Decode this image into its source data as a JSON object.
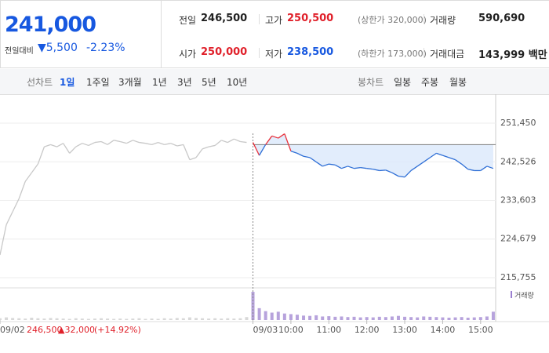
{
  "header": {
    "price": "241,000",
    "change_label": "전일대비",
    "change": "▼5,500",
    "rate": "-2.23%",
    "rows": [
      [
        {
          "label": "전일",
          "value": "246,500"
        },
        {
          "label": "고가",
          "value": "250,500",
          "note": "(상한가 320,000)"
        },
        {
          "label": "거래량",
          "value": "590,690"
        }
      ],
      [
        {
          "label": "시가",
          "value": "250,000"
        },
        {
          "label": "저가",
          "value": "238,500",
          "note": "(하한가 173,000)"
        },
        {
          "label": "거래대금",
          "value": "143,999 백만"
        }
      ]
    ]
  },
  "tabs": {
    "line_label": "선차트",
    "line_tabs": [
      "1일",
      "1주일",
      "3개월",
      "1년",
      "3년",
      "5년",
      "10년"
    ],
    "candle_label": "봉차트",
    "candle_tabs": [
      "일봉",
      "주봉",
      "월봉"
    ]
  },
  "chart_data": {
    "type": "line",
    "x": [
      0,
      1,
      2,
      3,
      4,
      5,
      6,
      7,
      8,
      9,
      10,
      11,
      12,
      13,
      14,
      15,
      16,
      17,
      18,
      19,
      20,
      21,
      22,
      23,
      24,
      25,
      26,
      27,
      28,
      29,
      30,
      31,
      32,
      33,
      34,
      35,
      36,
      37,
      38,
      39,
      40,
      41,
      42,
      43,
      44,
      45,
      46,
      47,
      48,
      49,
      50,
      51,
      52,
      53,
      54,
      55,
      56,
      57,
      58,
      59,
      60,
      61,
      62,
      63,
      64,
      65,
      66,
      67,
      68,
      69,
      70,
      71,
      72,
      73,
      74,
      75,
      76,
      77,
      78
    ],
    "series": [
      {
        "name": "09/02",
        "color": "#c8c8c8",
        "values": [
          221000,
          228000,
          231000,
          234000,
          238000,
          240000,
          242000,
          246000,
          246500,
          246000,
          246800,
          244500,
          246000,
          246800,
          246300,
          247000,
          247200,
          246500,
          247500,
          247200,
          246800,
          247500,
          247000,
          246800,
          246500,
          247000,
          246500,
          246800,
          246200,
          246500,
          243000,
          243500,
          245500,
          246000,
          246300,
          247500,
          247000,
          247800,
          247200,
          247000,
          null,
          null,
          null,
          null,
          null,
          null,
          null,
          null,
          null,
          null,
          null,
          null,
          null,
          null,
          null,
          null,
          null,
          null,
          null,
          null,
          null,
          null,
          null,
          null,
          null,
          null,
          null,
          null,
          null,
          null,
          null,
          null,
          null,
          null,
          null,
          null,
          null,
          null,
          null
        ]
      },
      {
        "name": "09/03",
        "color": "#2f6fd6",
        "up_color": "#e8303a",
        "values": [
          null,
          null,
          null,
          null,
          null,
          null,
          null,
          null,
          null,
          null,
          null,
          null,
          null,
          null,
          null,
          null,
          null,
          null,
          null,
          null,
          null,
          null,
          null,
          null,
          null,
          null,
          null,
          null,
          null,
          null,
          null,
          null,
          null,
          null,
          null,
          null,
          null,
          null,
          null,
          null,
          247000,
          244000,
          246500,
          248500,
          248000,
          249000,
          245000,
          244500,
          243800,
          243500,
          242500,
          241500,
          242000,
          241800,
          241000,
          241500,
          241000,
          241200,
          241000,
          240800,
          240500,
          240600,
          240000,
          239200,
          239000,
          240500,
          241500,
          242500,
          243500,
          244500,
          244000,
          243500,
          243000,
          242000,
          240800,
          240500,
          240500,
          241500,
          241000
        ]
      }
    ],
    "reference": 246500,
    "volume_name": "거래량",
    "volume": [
      6,
      9,
      7,
      6,
      5,
      8,
      6,
      5,
      7,
      6,
      5,
      4,
      6,
      5,
      4,
      5,
      6,
      5,
      4,
      5,
      4,
      5,
      6,
      4,
      5,
      4,
      6,
      5,
      7,
      6,
      9,
      7,
      6,
      5,
      6,
      5,
      6,
      5,
      6,
      10,
      95,
      40,
      30,
      25,
      28,
      22,
      20,
      18,
      15,
      14,
      16,
      12,
      13,
      11,
      12,
      10,
      11,
      9,
      10,
      9,
      11,
      10,
      12,
      14,
      11,
      10,
      9,
      12,
      11,
      10,
      9,
      8,
      9,
      10,
      8,
      9,
      10,
      12,
      28
    ],
    "xlim": [
      0,
      79
    ],
    "xticks": [
      {
        "value": 0,
        "label": "09/02"
      },
      {
        "value": 40,
        "label": "09/03"
      },
      {
        "value": 46,
        "label": "10:00"
      },
      {
        "value": 52,
        "label": "11:00"
      },
      {
        "value": 58,
        "label": "12:00"
      },
      {
        "value": 64,
        "label": "13:00"
      },
      {
        "value": 70,
        "label": "14:00"
      },
      {
        "value": 76,
        "label": "15:00"
      }
    ],
    "ylim": [
      213760,
      258160
    ],
    "yticks": [
      {
        "value": 251450,
        "label": "251,450"
      },
      {
        "value": 242526,
        "label": "242,526"
      },
      {
        "value": 233603,
        "label": "233,603"
      },
      {
        "value": 224679,
        "label": "224,679"
      },
      {
        "value": 215755,
        "label": "215,755"
      }
    ],
    "summary": {
      "price": "246,500",
      "change": "▲32,000",
      "rate": "(+14.92%)"
    },
    "grid": true
  }
}
